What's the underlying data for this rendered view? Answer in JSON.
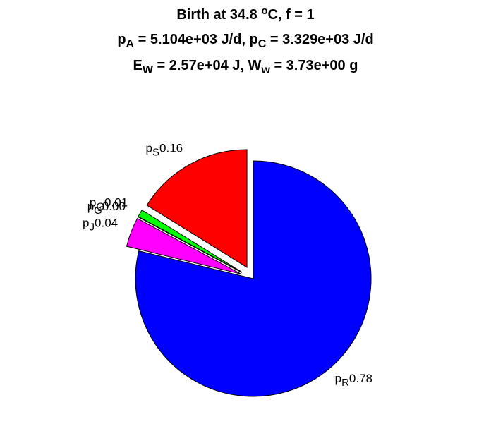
{
  "chart_data": {
    "type": "pie",
    "title": [
      [
        {
          "text": "Birth at 34.8 "
        },
        {
          "text": "o",
          "sup": true
        },
        {
          "text": "C, f = 1"
        }
      ],
      [
        {
          "text": "p"
        },
        {
          "text": "A",
          "sub": true
        },
        {
          "text": " = 5.104e+03 J/d, p"
        },
        {
          "text": "C",
          "sub": true
        },
        {
          "text": " = 3.329e+03 J/d"
        }
      ],
      [
        {
          "text": "E"
        },
        {
          "text": "W",
          "sub": true
        },
        {
          "text": " = 2.57e+04 J, W"
        },
        {
          "text": "w",
          "sub": true
        },
        {
          "text": " = 3.73e+00 g"
        }
      ]
    ],
    "label_prefix": "p",
    "categories": [
      "R",
      "J",
      "G",
      "G",
      "S"
    ],
    "values": [
      0.78,
      0.04,
      0,
      0.01,
      0.16
    ],
    "value_labels": [
      "0.78",
      "0.04",
      "0.00",
      "0.01",
      "0.16"
    ],
    "colors": [
      "#0000ff",
      "#ff00ff",
      "#007f00",
      "#00ff00",
      "#ff0000"
    ],
    "explode": [
      false,
      true,
      true,
      true,
      true
    ]
  }
}
